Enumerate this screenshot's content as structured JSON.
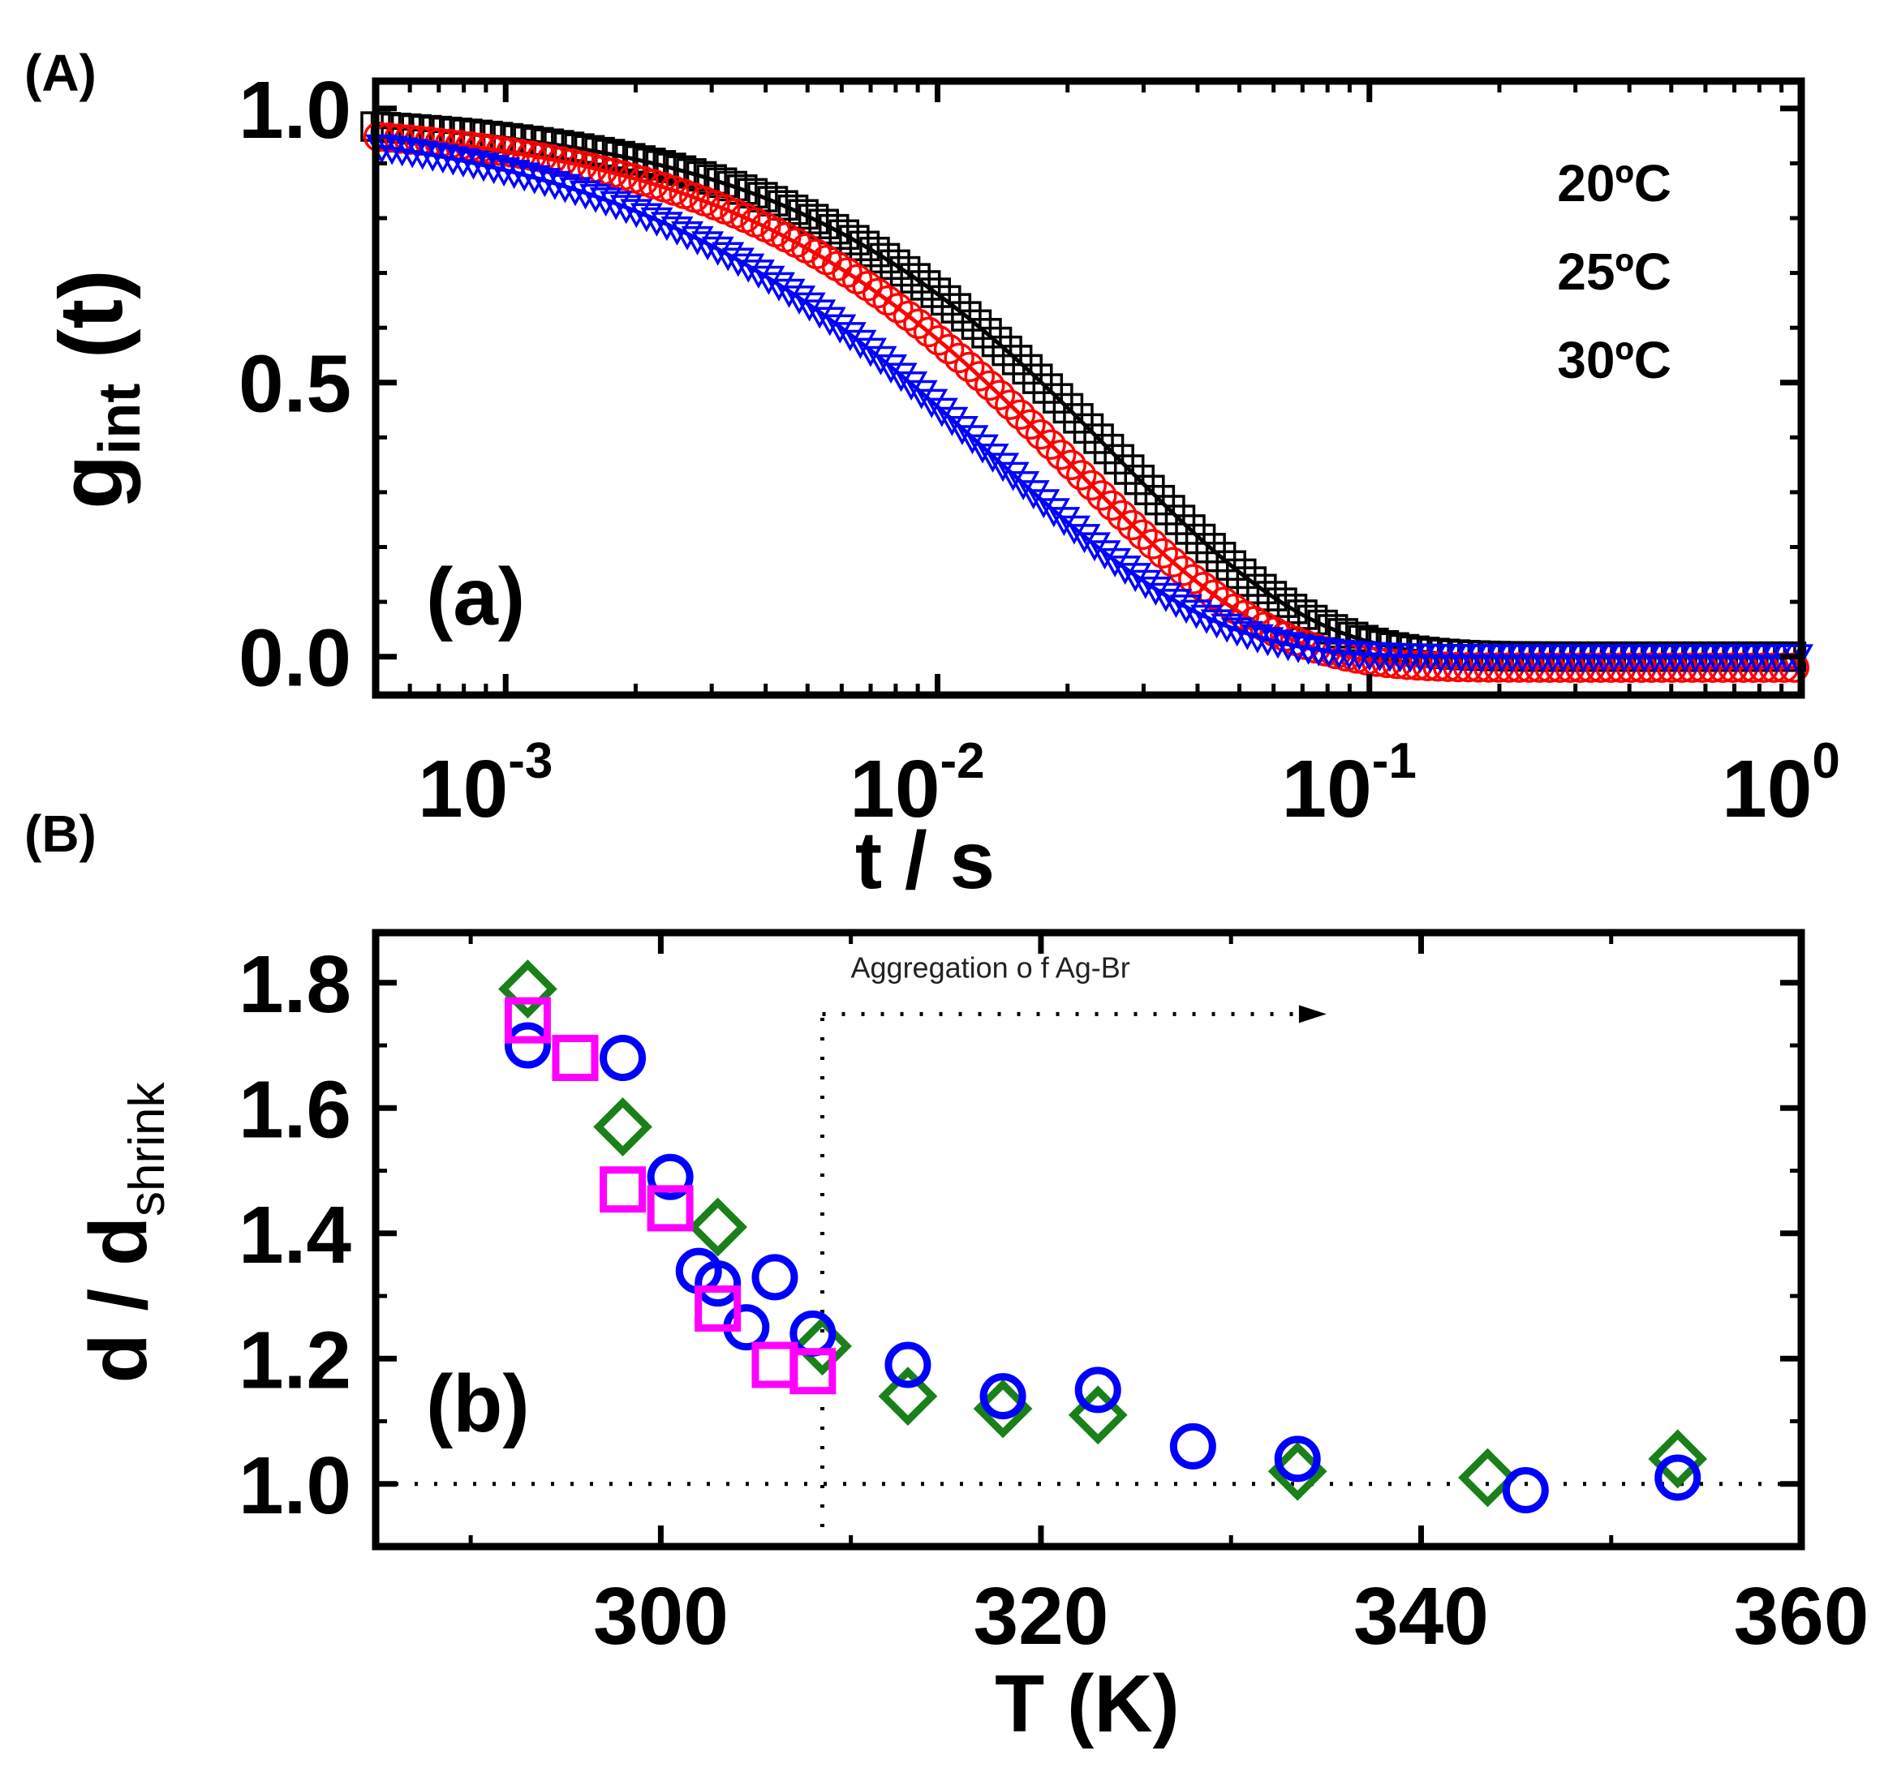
{
  "panel_labels": {
    "A": "(A)",
    "B": "(B)"
  },
  "chart_data": [
    {
      "type": "scatter",
      "panel": "A",
      "inset_label": "(a)",
      "xlabel": "t / s",
      "ylabel_main": "g",
      "ylabel_sub": "int",
      "ylabel_suffix": " (t)",
      "x_scale": "log",
      "xlim": [
        0.0005,
        1.0
      ],
      "ylim": [
        -0.07,
        1.05
      ],
      "x_ticks": [
        {
          "value": 0.001,
          "base": "10",
          "exp": "-3"
        },
        {
          "value": 0.01,
          "base": "10",
          "exp": "-2"
        },
        {
          "value": 0.1,
          "base": "10",
          "exp": "-1"
        },
        {
          "value": 1,
          "base": "10",
          "exp": "0"
        }
      ],
      "y_ticks": [
        {
          "value": 0.0,
          "label": "0.0"
        },
        {
          "value": 0.5,
          "label": "0.5"
        },
        {
          "value": 1.0,
          "label": "1.0"
        }
      ],
      "legend_position": "top-right",
      "series": [
        {
          "name": "20ºC",
          "marker": "square",
          "color": "#000000",
          "fit_color": "#000000",
          "model": {
            "tau": 0.026,
            "beta": 0.95,
            "baseline": 0.0,
            "amp": 0.99
          }
        },
        {
          "name": "25ºC",
          "marker": "circle",
          "color": "#ff0000",
          "fit_color": "#ff0000",
          "model": {
            "tau": 0.0205,
            "beta": 0.93,
            "baseline": -0.02,
            "amp": 1.0
          }
        },
        {
          "name": "30ºC",
          "marker": "triangle-down",
          "color": "#0000ff",
          "fit_color": "#0000ff",
          "model": {
            "tau": 0.0135,
            "beta": 0.85,
            "baseline": 0.0,
            "amp": 0.99
          }
        }
      ]
    },
    {
      "type": "scatter",
      "panel": "B",
      "inset_label": "(b)",
      "xlabel": "T (K)",
      "ylabel_main": "d / d",
      "ylabel_sub": "shrink",
      "xlim": [
        285,
        360
      ],
      "ylim": [
        0.9,
        1.88
      ],
      "x_ticks": [
        300,
        320,
        340,
        360
      ],
      "y_ticks": [
        {
          "value": 1.0,
          "label": "1.0"
        },
        {
          "value": 1.2,
          "label": "1.2"
        },
        {
          "value": 1.4,
          "label": "1.4"
        },
        {
          "value": 1.6,
          "label": "1.6"
        },
        {
          "value": 1.8,
          "label": "1.8"
        }
      ],
      "reference_line_y": 1.0,
      "transition_x": 308.5,
      "annotation": "Aggregation o f Ag-Br",
      "annotation_arrow_to_x": 334,
      "annotation_y": 1.75,
      "series": [
        {
          "name": "green diamonds",
          "marker": "diamond",
          "color": "#1a801a",
          "x": [
            293,
            298,
            303,
            308.5,
            313,
            318,
            323,
            333.5,
            343.5,
            353.5
          ],
          "y": [
            1.79,
            1.57,
            1.41,
            1.22,
            1.14,
            1.12,
            1.11,
            1.02,
            1.01,
            1.04
          ]
        },
        {
          "name": "blue circles",
          "marker": "circle",
          "color": "#0000ff",
          "x": [
            293,
            298,
            300.5,
            302,
            303,
            304.5,
            306,
            308,
            313,
            318,
            323,
            328,
            333.5,
            345.5,
            353.5
          ],
          "y": [
            1.7,
            1.68,
            1.49,
            1.34,
            1.32,
            1.25,
            1.33,
            1.24,
            1.19,
            1.14,
            1.15,
            1.06,
            1.04,
            0.99,
            1.01
          ]
        },
        {
          "name": "magenta squares",
          "marker": "square",
          "color": "#ff00ff",
          "x": [
            293,
            295.5,
            298,
            300.5,
            303,
            306,
            308
          ],
          "y": [
            1.74,
            1.68,
            1.47,
            1.44,
            1.28,
            1.19,
            1.18
          ]
        }
      ]
    }
  ]
}
